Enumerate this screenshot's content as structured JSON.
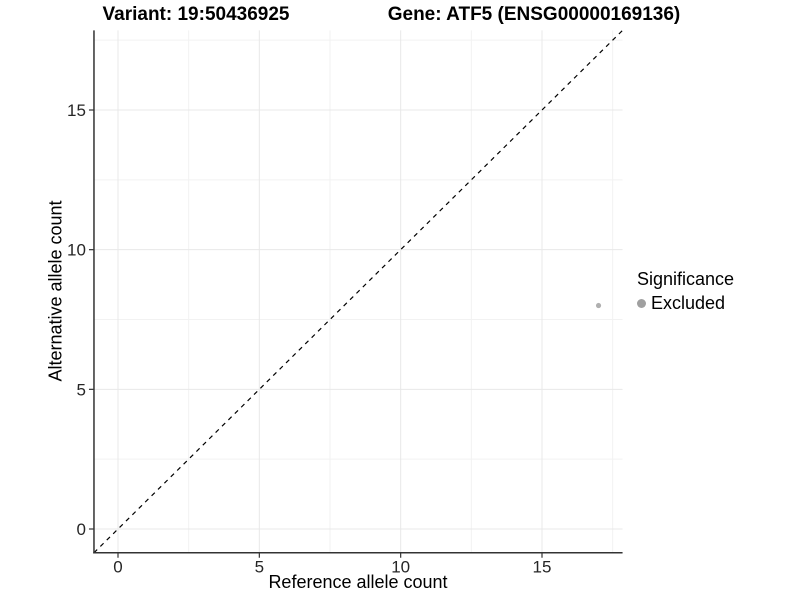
{
  "titles": {
    "variant": "Variant: 19:50436925",
    "gene": "Gene: ATF5 (ENSG00000169136)"
  },
  "chart_data": {
    "type": "scatter",
    "title_left": "Variant: 19:50436925",
    "title_right": "Gene: ATF5 (ENSG00000169136)",
    "xlabel": "Reference allele count",
    "ylabel": "Alternative allele count",
    "xlim": [
      -0.85,
      17.85
    ],
    "ylim": [
      -0.85,
      17.85
    ],
    "major_ticks": [
      0,
      5,
      10,
      15
    ],
    "minor_ticks": [
      2.5,
      7.5,
      12.5,
      17.5
    ],
    "grid": true,
    "reference_line": {
      "kind": "identity-diagonal",
      "style": "dashed",
      "color": "#000000"
    },
    "points": [
      {
        "x": 17,
        "y": 8,
        "series": "Excluded",
        "color": "#b0b0b0",
        "radius": 2.6
      }
    ],
    "legend": {
      "title": "Significance",
      "position": "right",
      "items": [
        {
          "label": "Excluded",
          "color": "#a0a0a0"
        }
      ]
    }
  },
  "colors": {
    "background": "#ffffff",
    "grid_major": "#e8e8e8",
    "grid_minor": "#f2f2f2",
    "axis_line": "#333333",
    "tick_text": "#262626",
    "point": "#b0b0b0"
  }
}
